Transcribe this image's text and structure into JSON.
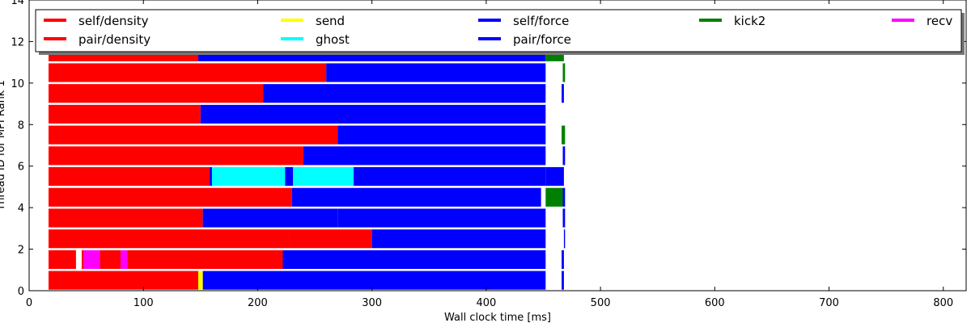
{
  "chart_data": {
    "type": "bar",
    "orientation": "horizontal",
    "xlabel": "Wall clock time [ms]",
    "ylabel": "Thread ID for MPI Rank 1",
    "xlim": [
      0,
      820
    ],
    "ylim": [
      0,
      14
    ],
    "x_ticks": [
      0,
      100,
      200,
      300,
      400,
      500,
      600,
      700,
      800
    ],
    "y_ticks": [
      0,
      2,
      4,
      6,
      8,
      10,
      12,
      14
    ],
    "grid": false,
    "legend_position": "top",
    "legend": [
      {
        "name": "self/density",
        "color": "#ff0000"
      },
      {
        "name": "pair/density",
        "color": "#ff0000"
      },
      {
        "name": "send",
        "color": "#ffff00"
      },
      {
        "name": "ghost",
        "color": "#00ffff"
      },
      {
        "name": "self/force",
        "color": "#0000ff"
      },
      {
        "name": "pair/force",
        "color": "#0000ff"
      },
      {
        "name": "kick2",
        "color": "#008000"
      },
      {
        "name": "recv",
        "color": "#ff00ff"
      }
    ],
    "threads": [
      {
        "thread": 0,
        "segments": [
          {
            "start": 17,
            "end": 148,
            "task": "pair/density"
          },
          {
            "start": 148,
            "end": 152,
            "task": "send"
          },
          {
            "start": 152,
            "end": 262,
            "task": "self/force"
          },
          {
            "start": 262,
            "end": 452,
            "task": "pair/force"
          },
          {
            "start": 466,
            "end": 468,
            "task": "pair/force"
          }
        ]
      },
      {
        "thread": 1,
        "segments": [
          {
            "start": 17,
            "end": 41,
            "task": "pair/density"
          },
          {
            "start": 46,
            "end": 48,
            "task": "pair/density"
          },
          {
            "start": 48,
            "end": 62,
            "task": "recv"
          },
          {
            "start": 62,
            "end": 80,
            "task": "pair/density"
          },
          {
            "start": 80,
            "end": 86,
            "task": "recv"
          },
          {
            "start": 86,
            "end": 222,
            "task": "pair/density"
          },
          {
            "start": 222,
            "end": 262,
            "task": "self/force"
          },
          {
            "start": 262,
            "end": 452,
            "task": "pair/force"
          },
          {
            "start": 466,
            "end": 468,
            "task": "pair/force"
          }
        ]
      },
      {
        "thread": 2,
        "segments": [
          {
            "start": 17,
            "end": 228,
            "task": "pair/density"
          },
          {
            "start": 228,
            "end": 300,
            "task": "pair/density"
          },
          {
            "start": 300,
            "end": 452,
            "task": "pair/force"
          },
          {
            "start": 468,
            "end": 469,
            "task": "pair/force"
          }
        ]
      },
      {
        "thread": 3,
        "segments": [
          {
            "start": 17,
            "end": 152,
            "task": "pair/density"
          },
          {
            "start": 152,
            "end": 270,
            "task": "self/force"
          },
          {
            "start": 270,
            "end": 452,
            "task": "pair/force"
          },
          {
            "start": 467,
            "end": 469,
            "task": "pair/force"
          }
        ]
      },
      {
        "thread": 4,
        "segments": [
          {
            "start": 17,
            "end": 230,
            "task": "pair/density"
          },
          {
            "start": 230,
            "end": 448,
            "task": "pair/force"
          },
          {
            "start": 452,
            "end": 467,
            "task": "kick2"
          },
          {
            "start": 467,
            "end": 469,
            "task": "pair/force"
          }
        ]
      },
      {
        "thread": 5,
        "segments": [
          {
            "start": 17,
            "end": 158,
            "task": "pair/density"
          },
          {
            "start": 158,
            "end": 160,
            "task": "self/force"
          },
          {
            "start": 160,
            "end": 224,
            "task": "ghost"
          },
          {
            "start": 224,
            "end": 231,
            "task": "self/force"
          },
          {
            "start": 231,
            "end": 284,
            "task": "ghost"
          },
          {
            "start": 284,
            "end": 452,
            "task": "pair/force"
          },
          {
            "start": 452,
            "end": 468,
            "task": "pair/force"
          }
        ]
      },
      {
        "thread": 6,
        "segments": [
          {
            "start": 17,
            "end": 240,
            "task": "pair/density"
          },
          {
            "start": 240,
            "end": 452,
            "task": "pair/force"
          },
          {
            "start": 467,
            "end": 469,
            "task": "pair/force"
          }
        ]
      },
      {
        "thread": 7,
        "segments": [
          {
            "start": 17,
            "end": 270,
            "task": "pair/density"
          },
          {
            "start": 270,
            "end": 452,
            "task": "pair/force"
          },
          {
            "start": 466,
            "end": 469,
            "task": "kick2"
          }
        ]
      },
      {
        "thread": 8,
        "segments": [
          {
            "start": 17,
            "end": 150,
            "task": "pair/density"
          },
          {
            "start": 150,
            "end": 452,
            "task": "pair/force"
          }
        ]
      },
      {
        "thread": 9,
        "segments": [
          {
            "start": 17,
            "end": 205,
            "task": "pair/density"
          },
          {
            "start": 205,
            "end": 452,
            "task": "pair/force"
          },
          {
            "start": 466,
            "end": 468,
            "task": "pair/force"
          }
        ]
      },
      {
        "thread": 10,
        "segments": [
          {
            "start": 17,
            "end": 260,
            "task": "pair/density"
          },
          {
            "start": 260,
            "end": 452,
            "task": "pair/force"
          },
          {
            "start": 467,
            "end": 469,
            "task": "kick2"
          }
        ]
      },
      {
        "thread": 11,
        "segments": [
          {
            "start": 17,
            "end": 148,
            "task": "pair/density"
          },
          {
            "start": 148,
            "end": 452,
            "task": "pair/force"
          },
          {
            "start": 452,
            "end": 468,
            "task": "kick2"
          }
        ]
      }
    ]
  }
}
